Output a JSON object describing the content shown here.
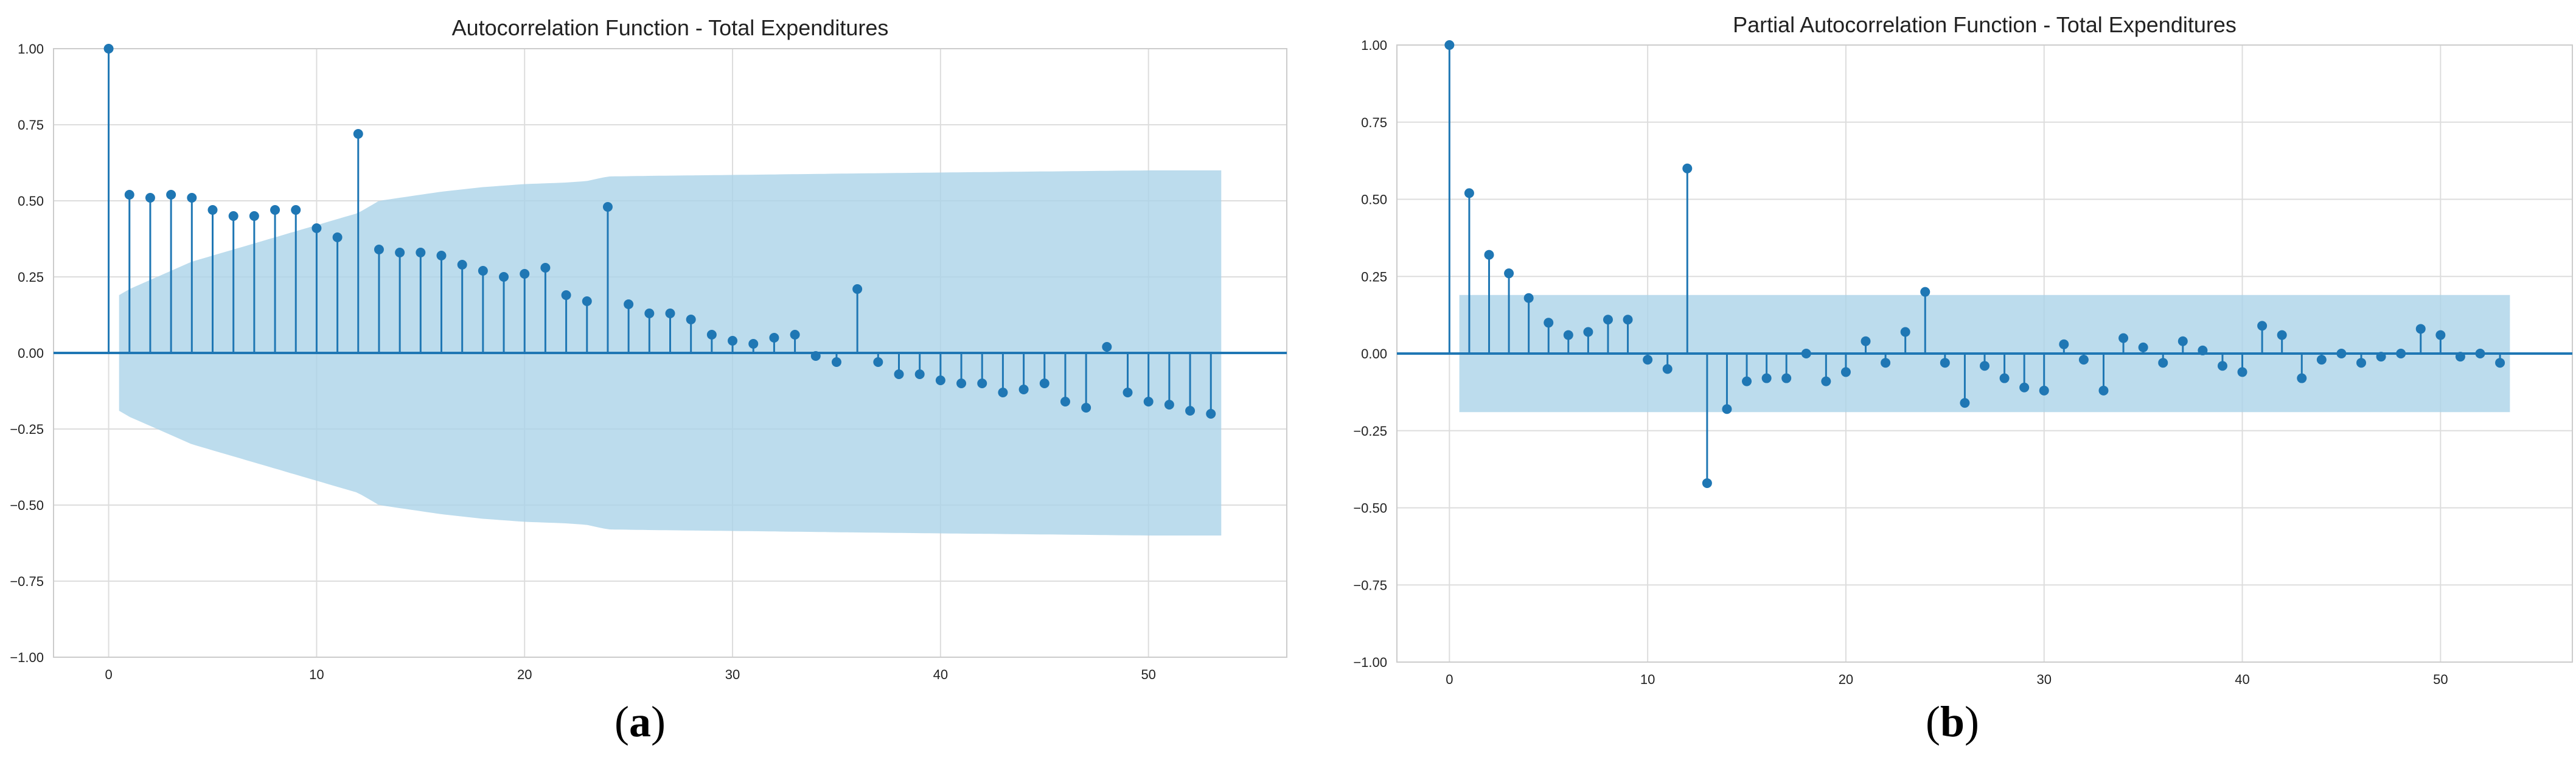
{
  "colors": {
    "stem": "#1f77b4",
    "marker": "#1f77b4",
    "band": "#a9d2e8",
    "grid": "#dddddd",
    "axis": "#cccccc",
    "text": "#222222"
  },
  "captions": {
    "a": "a",
    "b": "b"
  },
  "chart_data": [
    {
      "id": "acf",
      "type": "stem",
      "title": "Autocorrelation Function - Total Expenditures",
      "xlim": [
        -2.65,
        56.65
      ],
      "ylim": [
        -1.0,
        1.0
      ],
      "xticks": [
        0,
        10,
        20,
        30,
        40,
        50
      ],
      "yticks": [
        -1.0,
        -0.75,
        -0.5,
        -0.25,
        0.0,
        0.25,
        0.5,
        0.75,
        1.0
      ],
      "ytick_labels": [
        "−1.00",
        "−0.75",
        "−0.50",
        "−0.25",
        "0.00",
        "0.25",
        "0.50",
        "0.75",
        "1.00"
      ],
      "lags": [
        0,
        1,
        2,
        3,
        4,
        5,
        6,
        7,
        8,
        9,
        10,
        11,
        12,
        13,
        14,
        15,
        16,
        17,
        18,
        19,
        20,
        21,
        22,
        23,
        24,
        25,
        26,
        27,
        28,
        29,
        30,
        31,
        32,
        33,
        34,
        35,
        36,
        37,
        38,
        39,
        40,
        41,
        42,
        43,
        44,
        45,
        46,
        47,
        48,
        49,
        50,
        51,
        52,
        53
      ],
      "values": [
        1.0,
        0.52,
        0.51,
        0.52,
        0.51,
        0.47,
        0.45,
        0.45,
        0.47,
        0.47,
        0.41,
        0.38,
        0.72,
        0.34,
        0.33,
        0.33,
        0.32,
        0.29,
        0.27,
        0.25,
        0.26,
        0.28,
        0.19,
        0.17,
        0.48,
        0.16,
        0.13,
        0.13,
        0.11,
        0.06,
        0.04,
        0.03,
        0.05,
        0.06,
        -0.01,
        -0.03,
        0.21,
        -0.03,
        -0.07,
        -0.07,
        -0.09,
        -0.1,
        -0.1,
        -0.13,
        -0.12,
        -0.1,
        -0.16,
        -0.18,
        0.02,
        -0.13,
        -0.16,
        -0.17,
        -0.19,
        -0.2
      ],
      "confint": {
        "lags": [
          0.5,
          1,
          2,
          3,
          4,
          5,
          6,
          7,
          8,
          9,
          10,
          11,
          12,
          13,
          14,
          16,
          18,
          20,
          22,
          23,
          24,
          26,
          30,
          36,
          40,
          50,
          53.5
        ],
        "upper": [
          0.19,
          0.21,
          0.24,
          0.27,
          0.3,
          0.32,
          0.34,
          0.36,
          0.38,
          0.4,
          0.42,
          0.44,
          0.46,
          0.5,
          0.51,
          0.53,
          0.545,
          0.555,
          0.56,
          0.565,
          0.58,
          0.582,
          0.585,
          0.59,
          0.593,
          0.6,
          0.6
        ]
      }
    },
    {
      "id": "pacf",
      "type": "stem",
      "title": "Partial Autocorrelation Function - Total Expenditures",
      "xlim": [
        -2.65,
        56.65
      ],
      "ylim": [
        -1.0,
        1.0
      ],
      "xticks": [
        0,
        10,
        20,
        30,
        40,
        50
      ],
      "yticks": [
        -1.0,
        -0.75,
        -0.5,
        -0.25,
        0.0,
        0.25,
        0.5,
        0.75,
        1.0
      ],
      "ytick_labels": [
        "−1.00",
        "−0.75",
        "−0.50",
        "−0.25",
        "0.00",
        "0.25",
        "0.50",
        "0.75",
        "1.00"
      ],
      "lags": [
        0,
        1,
        2,
        3,
        4,
        5,
        6,
        7,
        8,
        9,
        10,
        11,
        12,
        13,
        14,
        15,
        16,
        17,
        18,
        19,
        20,
        21,
        22,
        23,
        24,
        25,
        26,
        27,
        28,
        29,
        30,
        31,
        32,
        33,
        34,
        35,
        36,
        37,
        38,
        39,
        40,
        41,
        42,
        43,
        44,
        45,
        46,
        47,
        48,
        49,
        50,
        51,
        52,
        53
      ],
      "values": [
        1.0,
        0.52,
        0.32,
        0.26,
        0.18,
        0.1,
        0.06,
        0.07,
        0.11,
        0.11,
        -0.02,
        -0.05,
        0.6,
        -0.42,
        -0.18,
        -0.09,
        -0.08,
        -0.08,
        0.0,
        -0.09,
        -0.06,
        0.04,
        -0.03,
        0.07,
        0.2,
        -0.03,
        -0.16,
        -0.04,
        -0.08,
        -0.11,
        -0.12,
        0.03,
        -0.02,
        -0.12,
        0.05,
        0.02,
        -0.03,
        0.04,
        0.01,
        -0.04,
        -0.06,
        0.09,
        0.06,
        -0.08,
        -0.02,
        0.0,
        -0.03,
        -0.01,
        0.0,
        0.08,
        0.06,
        -0.01,
        0.0,
        -0.03
      ],
      "confint": {
        "lags": [
          0.5,
          53.5
        ],
        "upper": [
          0.19,
          0.19
        ]
      }
    }
  ]
}
